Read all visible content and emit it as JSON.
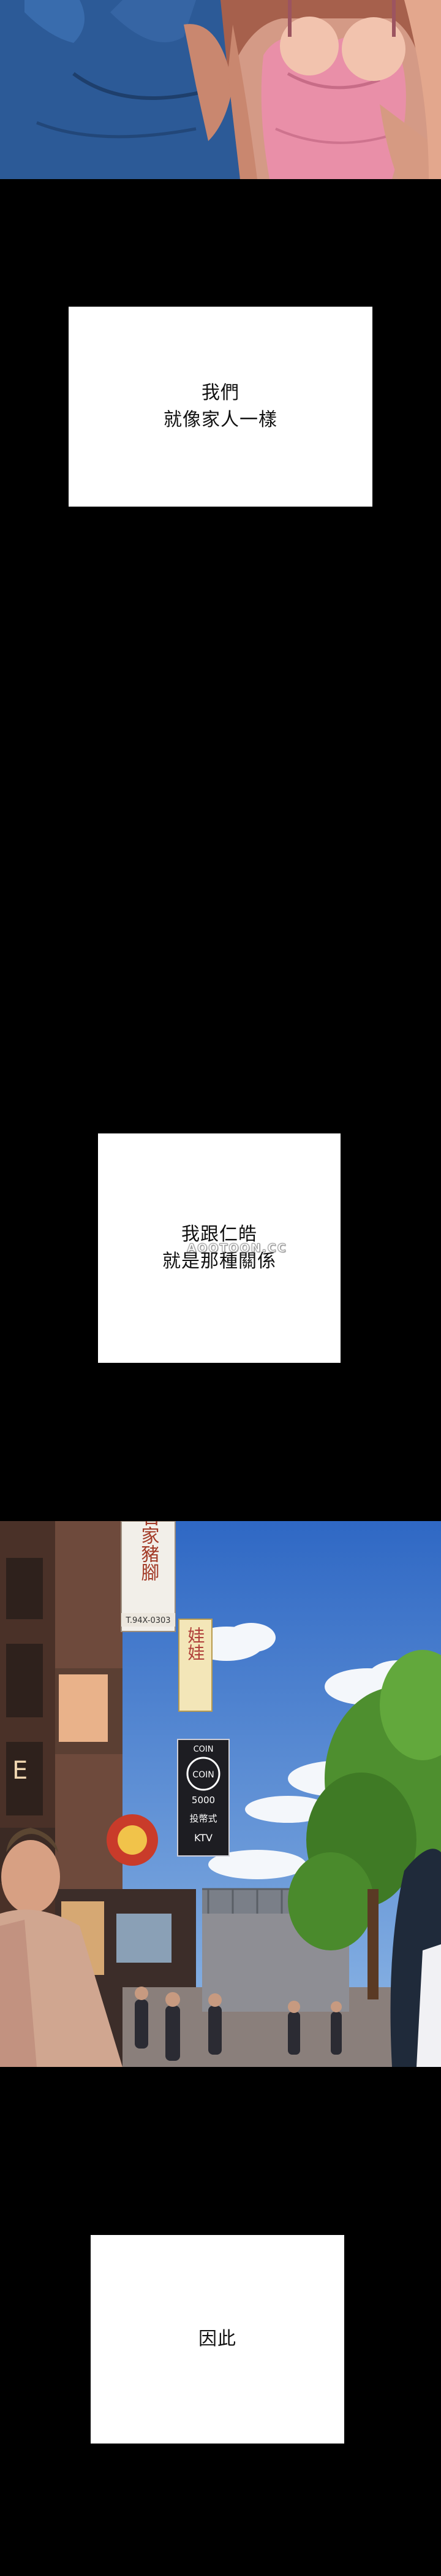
{
  "captions": [
    {
      "lines": [
        "我們",
        "就像家人一樣"
      ]
    },
    {
      "lines": [
        "我跟仁皓",
        "就是那種關係"
      ]
    },
    {
      "lines": [
        "因此"
      ]
    }
  ],
  "watermark": "AOOTOON.CC",
  "signs": {
    "vertical_top": "石家豬腳",
    "phone": "T.94X-0303",
    "vertical_yellow": "娃娃",
    "coin_top": "COIN",
    "coin_circle": "COIN",
    "coin_number": "5000",
    "coin_sub": "投幣式",
    "coin_ktv": "KTV",
    "store_left": "E"
  },
  "colors": {
    "background": "#000000",
    "caption_bg": "#ffffff",
    "caption_text": "#111111",
    "sky": "#4f86cf",
    "shirt_blue": "#2c5a97",
    "top_pink": "#e98fa8",
    "foliage": "#4e8f2f"
  }
}
